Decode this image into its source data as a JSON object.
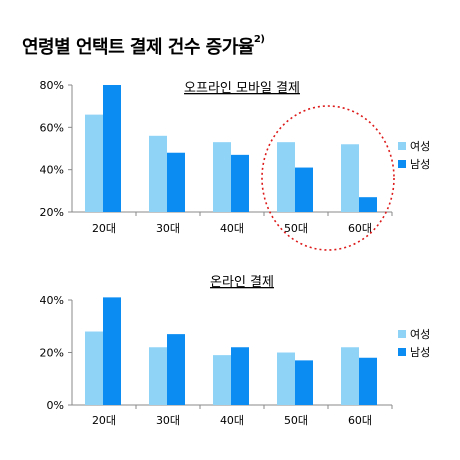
{
  "title": "연령별 언택트 결제 건수 증가율",
  "title_note": "2)",
  "colors": {
    "female": "#8fd3f7",
    "male": "#0a8cf3",
    "highlight": "#dd1a1a"
  },
  "chart_data": [
    {
      "type": "bar",
      "title": "오프라인 모바일 결제",
      "categories": [
        "20대",
        "30대",
        "40대",
        "50대",
        "60대"
      ],
      "ylim": [
        20,
        80
      ],
      "yticks": [
        20,
        40,
        60,
        80
      ],
      "tick_suffix": "%",
      "legend_position": "right",
      "highlight_categories": [
        "50대",
        "60대"
      ],
      "series": [
        {
          "name": "여성",
          "values": [
            66,
            56,
            53,
            53,
            52
          ]
        },
        {
          "name": "남성",
          "values": [
            80,
            48,
            47,
            41,
            27
          ]
        }
      ]
    },
    {
      "type": "bar",
      "title": "온라인 결제",
      "categories": [
        "20대",
        "30대",
        "40대",
        "50대",
        "60대"
      ],
      "ylim": [
        0,
        40
      ],
      "yticks": [
        0,
        20,
        40
      ],
      "tick_suffix": "%",
      "legend_position": "right",
      "series": [
        {
          "name": "여성",
          "values": [
            28,
            22,
            19,
            20,
            22
          ]
        },
        {
          "name": "남성",
          "values": [
            41,
            27,
            22,
            17,
            18
          ]
        }
      ]
    }
  ]
}
